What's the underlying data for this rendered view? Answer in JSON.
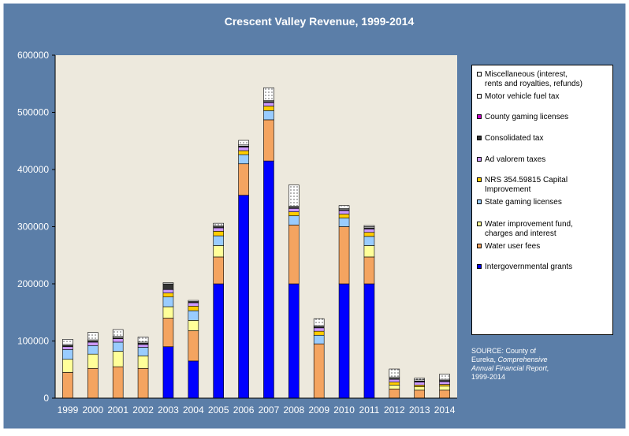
{
  "chart_data": {
    "type": "bar",
    "stacked": true,
    "title": "Crescent Valley  Revenue, 1999-2014",
    "categories": [
      "1999",
      "2000",
      "2001",
      "2002",
      "2003",
      "2004",
      "2005",
      "2006",
      "2007",
      "2008",
      "2009",
      "2010",
      "2011",
      "2012",
      "2013",
      "2014"
    ],
    "ylim": [
      0,
      600000
    ],
    "yticks": [
      "0",
      "100000",
      "200000",
      "300000",
      "400000",
      "500000",
      "600000"
    ],
    "grid": false,
    "legend_position": "right",
    "series": [
      {
        "name": "Intergovernmental grants",
        "color": "#0000ff",
        "values": [
          0,
          0,
          0,
          0,
          90000,
          65000,
          200000,
          355000,
          415000,
          200000,
          0,
          200000,
          200000,
          0,
          0,
          0
        ]
      },
      {
        "name": "Water user fees",
        "color": "#f4a460",
        "values": [
          45000,
          52000,
          55000,
          52000,
          50000,
          53000,
          47000,
          55000,
          72000,
          103000,
          95000,
          100000,
          47000,
          16000,
          14000,
          14000
        ]
      },
      {
        "name": "Water improvement fund,\ncharges and interest",
        "color": "#ffff99",
        "values": [
          23000,
          25000,
          27000,
          22000,
          20000,
          18000,
          20000,
          0,
          0,
          0,
          0,
          0,
          20000,
          7000,
          6000,
          7000
        ]
      },
      {
        "name": "State gaming licenses",
        "color": "#99ccff",
        "values": [
          17000,
          15000,
          16000,
          15000,
          17000,
          17000,
          17000,
          16000,
          16000,
          16000,
          15000,
          15000,
          16000,
          0,
          0,
          0
        ]
      },
      {
        "name": "NRS 354.59815 Capital\nImprovement",
        "color": "#ffcc00",
        "values": [
          0,
          0,
          0,
          0,
          7000,
          8000,
          8000,
          7000,
          8000,
          7000,
          7000,
          7000,
          7000,
          5000,
          3000,
          3000
        ]
      },
      {
        "name": "Ad valorem taxes",
        "color": "#cc99ff",
        "values": [
          5000,
          6000,
          6000,
          5000,
          6000,
          6000,
          6000,
          6000,
          6000,
          6000,
          6000,
          6000,
          6000,
          5000,
          5000,
          5000
        ]
      },
      {
        "name": "Consolidated tax",
        "color": "#333333",
        "values": [
          2000,
          2000,
          2000,
          2000,
          10000,
          2000,
          2000,
          2000,
          2000,
          2000,
          2000,
          2000,
          2000,
          2000,
          2000,
          2000
        ]
      },
      {
        "name": "County gaming licenses",
        "color": "#cc00cc",
        "values": [
          0,
          0,
          0,
          0,
          0,
          0,
          0,
          0,
          0,
          0,
          0,
          0,
          0,
          0,
          0,
          0
        ]
      },
      {
        "name": "Motor vehicle fuel tax",
        "color": "#ffffff",
        "values": [
          2000,
          2000,
          2000,
          2000,
          2000,
          2000,
          2000,
          2000,
          2000,
          2000,
          2000,
          2000,
          2000,
          2000,
          2000,
          2000
        ]
      },
      {
        "name": "Miscellaneous (interest,\nrents and royalties, refunds)",
        "color": "#ffffff",
        "dotted": true,
        "values": [
          9000,
          13000,
          12000,
          9000,
          0,
          0,
          4000,
          8000,
          22000,
          37000,
          12000,
          5000,
          2000,
          14000,
          3000,
          9000
        ]
      }
    ]
  },
  "colors": {
    "background": "#5b7ea8",
    "plot_area": "#ede9dd",
    "text": "#ffffff"
  },
  "source": {
    "line1": "SOURCE: County of",
    "line2_plain": "Eureka, ",
    "line2_italic": "Comprehensive",
    "line3_italic": "Annual Financial Report,",
    "line4": "1999-2014"
  }
}
